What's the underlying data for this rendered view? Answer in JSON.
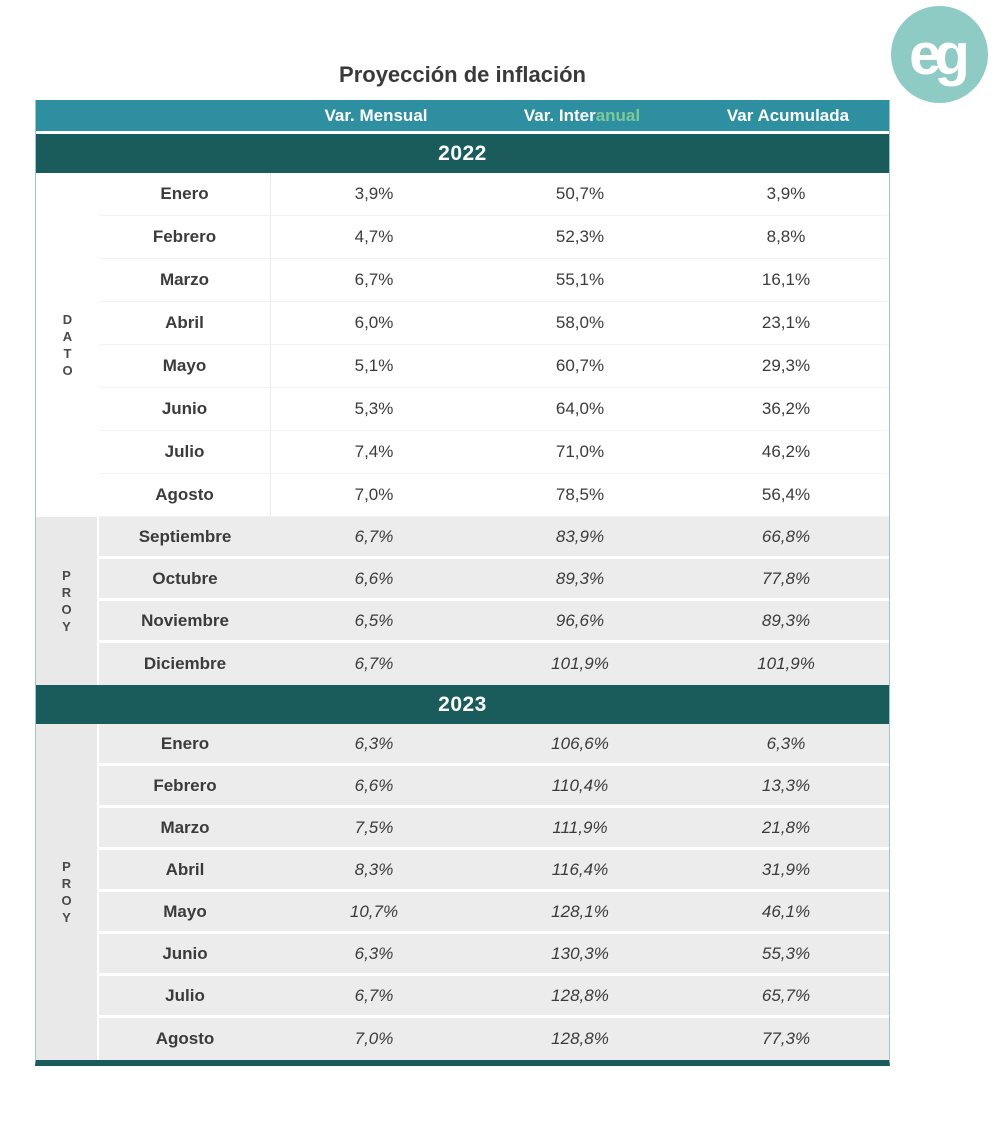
{
  "logo": {
    "text": "eg"
  },
  "chart_data": {
    "type": "table",
    "title": "Proyección de inflación",
    "columns": [
      "Var. Mensual",
      "Var. Interanual",
      "Var Acumulada"
    ],
    "interanual_split": {
      "prefix": "Var. Inter",
      "suffix": "anual"
    },
    "colors": {
      "header_bg": "#2E8FA0",
      "banner_bg": "#1A5C5C",
      "interanual_suffix_green": "#7DC998",
      "proy_row_bg": "#ECECEC",
      "logo_bg": "#8ECBC5"
    },
    "sections": [
      {
        "year": "2022",
        "groups": [
          {
            "label": "DATO",
            "type": "dato",
            "rows": [
              [
                "Enero",
                "3,9%",
                "50,7%",
                "3,9%"
              ],
              [
                "Febrero",
                "4,7%",
                "52,3%",
                "8,8%"
              ],
              [
                "Marzo",
                "6,7%",
                "55,1%",
                "16,1%"
              ],
              [
                "Abril",
                "6,0%",
                "58,0%",
                "23,1%"
              ],
              [
                "Mayo",
                "5,1%",
                "60,7%",
                "29,3%"
              ],
              [
                "Junio",
                "5,3%",
                "64,0%",
                "36,2%"
              ],
              [
                "Julio",
                "7,4%",
                "71,0%",
                "46,2%"
              ],
              [
                "Agosto",
                "7,0%",
                "78,5%",
                "56,4%"
              ]
            ]
          },
          {
            "label": "PROY",
            "type": "proy",
            "rows": [
              [
                "Septiembre",
                "6,7%",
                "83,9%",
                "66,8%"
              ],
              [
                "Octubre",
                "6,6%",
                "89,3%",
                "77,8%"
              ],
              [
                "Noviembre",
                "6,5%",
                "96,6%",
                "89,3%"
              ],
              [
                "Diciembre",
                "6,7%",
                "101,9%",
                "101,9%"
              ]
            ]
          }
        ]
      },
      {
        "year": "2023",
        "groups": [
          {
            "label": "PROY",
            "type": "proy",
            "rows": [
              [
                "Enero",
                "6,3%",
                "106,6%",
                "6,3%"
              ],
              [
                "Febrero",
                "6,6%",
                "110,4%",
                "13,3%"
              ],
              [
                "Marzo",
                "7,5%",
                "111,9%",
                "21,8%"
              ],
              [
                "Abril",
                "8,3%",
                "116,4%",
                "31,9%"
              ],
              [
                "Mayo",
                "10,7%",
                "128,1%",
                "46,1%"
              ],
              [
                "Junio",
                "6,3%",
                "130,3%",
                "55,3%"
              ],
              [
                "Julio",
                "6,7%",
                "128,8%",
                "65,7%"
              ],
              [
                "Agosto",
                "7,0%",
                "128,8%",
                "77,3%"
              ]
            ]
          }
        ]
      }
    ]
  }
}
